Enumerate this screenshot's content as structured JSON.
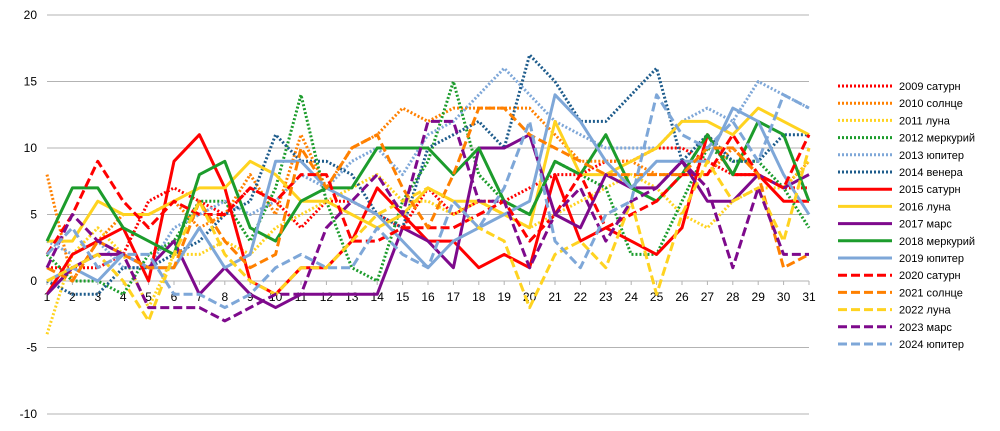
{
  "chart_data": {
    "type": "line",
    "title": "",
    "xlabel": "",
    "ylabel": "",
    "x": [
      1,
      2,
      3,
      4,
      5,
      6,
      7,
      8,
      9,
      10,
      11,
      12,
      13,
      14,
      15,
      16,
      17,
      18,
      19,
      20,
      21,
      22,
      23,
      24,
      25,
      26,
      27,
      28,
      29,
      30,
      31
    ],
    "ylim": [
      -10,
      20
    ],
    "yticks": [
      -10,
      -5,
      0,
      5,
      10,
      15,
      20
    ],
    "grid": "horizontal",
    "legend_position": "right",
    "series": [
      {
        "name": "2009 сатурн",
        "color": "#ff0000",
        "dash": "dotted",
        "values": [
          1,
          1,
          1,
          2,
          6,
          7,
          6,
          5,
          7,
          6,
          4,
          6,
          6,
          5,
          4,
          7,
          5,
          6,
          6,
          7,
          8,
          8,
          9,
          9,
          10,
          10,
          9,
          8,
          8,
          7,
          7
        ]
      },
      {
        "name": "2010 солнце",
        "color": "#ff8000",
        "dash": "dotted",
        "values": [
          8,
          0,
          3,
          5,
          5,
          6,
          4,
          5,
          8,
          5,
          11,
          7,
          10,
          11,
          13,
          12,
          13,
          13,
          13,
          13,
          11,
          9,
          9,
          9,
          8,
          8,
          8,
          10,
          8,
          7,
          9
        ]
      },
      {
        "name": "2011 луна",
        "color": "#ffd320",
        "dash": "dotted",
        "values": [
          -4,
          2,
          4,
          2,
          -2,
          2,
          2,
          3,
          2,
          4,
          5,
          6,
          7,
          8,
          6,
          6,
          5,
          6,
          5,
          4,
          5,
          6,
          7,
          8,
          7,
          5,
          4,
          6,
          7,
          7,
          9
        ]
      },
      {
        "name": "2012 меркурий",
        "color": "#1c9c2c",
        "dash": "dotted",
        "values": [
          2,
          0,
          0,
          -1,
          2,
          3,
          6,
          6,
          3,
          7,
          14,
          6,
          1,
          0,
          6,
          9,
          15,
          8,
          6,
          5,
          9,
          8,
          7,
          2,
          2,
          6,
          10,
          9,
          9,
          7,
          4
        ]
      },
      {
        "name": "2013 юпитер",
        "color": "#7ea7d8",
        "dash": "dotted",
        "values": [
          3,
          2,
          3,
          1,
          1,
          4,
          5,
          6,
          5,
          6,
          8,
          7,
          9,
          10,
          8,
          11,
          12,
          14,
          16,
          14,
          12,
          11,
          10,
          10,
          10,
          12,
          13,
          12,
          15,
          14,
          13
        ]
      },
      {
        "name": "2014 венера",
        "color": "#1e5c8c",
        "dash": "dotted",
        "values": [
          0,
          -1,
          -1,
          1,
          1,
          2,
          3,
          5,
          6,
          11,
          9,
          9,
          8,
          5,
          4,
          10,
          11,
          12,
          10,
          17,
          15,
          12,
          12,
          14,
          16,
          9,
          11,
          9,
          9,
          11,
          11
        ]
      },
      {
        "name": "2015 сатурн",
        "color": "#ff0000",
        "dash": "solid",
        "values": [
          -1,
          2,
          3,
          4,
          0,
          9,
          11,
          7,
          0,
          -1,
          1,
          1,
          3,
          7,
          5,
          3,
          3,
          1,
          2,
          1,
          8,
          3,
          4,
          3,
          2,
          4,
          11,
          8,
          8,
          6,
          6
        ]
      },
      {
        "name": "2016 луна",
        "color": "#ffd320",
        "dash": "solid",
        "values": [
          3,
          3,
          6,
          5,
          5,
          6,
          7,
          7,
          9,
          8,
          6,
          6,
          5,
          4,
          5,
          7,
          6,
          6,
          5,
          4,
          12,
          8,
          8,
          9,
          10,
          12,
          12,
          11,
          13,
          12,
          11
        ]
      },
      {
        "name": "2017 марс",
        "color": "#7e0a8c",
        "dash": "solid",
        "values": [
          -1,
          1,
          2,
          2,
          1,
          3,
          -1,
          1,
          -1,
          -2,
          -1,
          -1,
          -1,
          -1,
          4,
          3,
          1,
          10,
          10,
          11,
          5,
          4,
          8,
          7,
          7,
          9,
          6,
          6,
          8,
          7,
          8
        ]
      },
      {
        "name": "2018 меркурий",
        "color": "#1c9c2c",
        "dash": "solid",
        "values": [
          3,
          7,
          7,
          4,
          3,
          2,
          8,
          9,
          4,
          3,
          6,
          7,
          7,
          10,
          10,
          10,
          8,
          10,
          6,
          5,
          9,
          8,
          11,
          7,
          6,
          8,
          11,
          8,
          12,
          11,
          6
        ]
      },
      {
        "name": "2019 юпитер",
        "color": "#7ea7d8",
        "dash": "solid",
        "values": [
          0,
          1,
          0,
          2,
          1,
          1,
          4,
          1,
          2,
          9,
          9,
          7,
          6,
          5,
          3,
          1,
          3,
          4,
          5,
          6,
          14,
          12,
          9,
          7,
          9,
          9,
          9,
          13,
          12,
          8,
          5
        ]
      },
      {
        "name": "2020 сатурн",
        "color": "#ff0000",
        "dash": "dashed",
        "values": [
          2,
          5,
          9,
          6,
          4,
          6,
          5,
          5,
          7,
          6,
          8,
          8,
          3,
          3,
          4,
          4,
          4,
          5,
          6,
          3,
          5,
          8,
          4,
          5,
          6,
          8,
          8,
          11,
          8,
          7,
          11
        ]
      },
      {
        "name": "2021 солнце",
        "color": "#ff8000",
        "dash": "dashed",
        "values": [
          1,
          0,
          3,
          2,
          1,
          1,
          6,
          3,
          1,
          2,
          10,
          7,
          10,
          11,
          7,
          4,
          8,
          13,
          13,
          11,
          10,
          9,
          8,
          8,
          8,
          8,
          10,
          10,
          8,
          1,
          2
        ]
      },
      {
        "name": "2022 луна",
        "color": "#ffd320",
        "dash": "dashed",
        "values": [
          0,
          1,
          2,
          0,
          -3,
          2,
          6,
          2,
          0,
          -1,
          1,
          1,
          3,
          5,
          6,
          7,
          6,
          4,
          3,
          -2,
          2,
          3,
          1,
          6,
          -1,
          5,
          9,
          6,
          7,
          3,
          10
        ]
      },
      {
        "name": "2023 марс",
        "color": "#7e0a8c",
        "dash": "dashed",
        "values": [
          1,
          5,
          3,
          2,
          -2,
          -2,
          -2,
          -3,
          -2,
          -1,
          -1,
          4,
          6,
          8,
          5,
          12,
          12,
          6,
          6,
          1,
          5,
          7,
          3,
          6,
          7,
          9,
          7,
          1,
          7,
          2,
          2
        ]
      },
      {
        "name": "2024 юпитер",
        "color": "#7ea7d8",
        "dash": "dashed",
        "values": [
          2,
          4,
          1,
          2,
          2,
          -1,
          -1,
          -2,
          -1,
          1,
          2,
          1,
          1,
          4,
          2,
          1,
          6,
          4,
          7,
          12,
          3,
          1,
          5,
          6,
          14,
          11,
          10,
          12,
          9,
          14,
          13
        ]
      }
    ]
  }
}
